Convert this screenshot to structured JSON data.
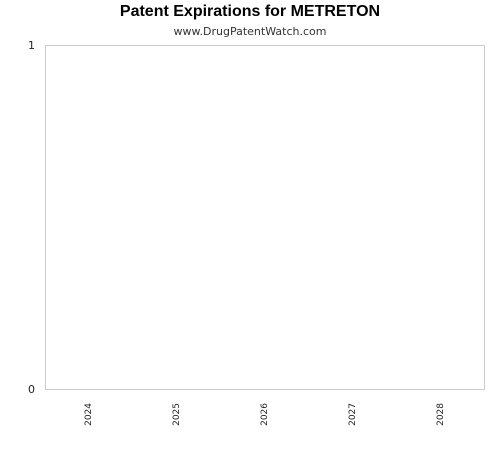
{
  "chart_data": {
    "type": "bar",
    "title": "Patent Expirations for METRETON",
    "subtitle": "www.DrugPatentWatch.com",
    "categories": [
      "2024",
      "2025",
      "2026",
      "2027",
      "2028"
    ],
    "values": [
      0,
      0,
      0,
      0,
      0
    ],
    "ylim": [
      0,
      1
    ],
    "yticks": [
      "0",
      "1"
    ],
    "xlabel": "",
    "ylabel": "",
    "grid": false,
    "legend": "none",
    "colors": {
      "axis": "#cccccc",
      "text": "#222222",
      "bar": "#4a7ebb"
    }
  }
}
